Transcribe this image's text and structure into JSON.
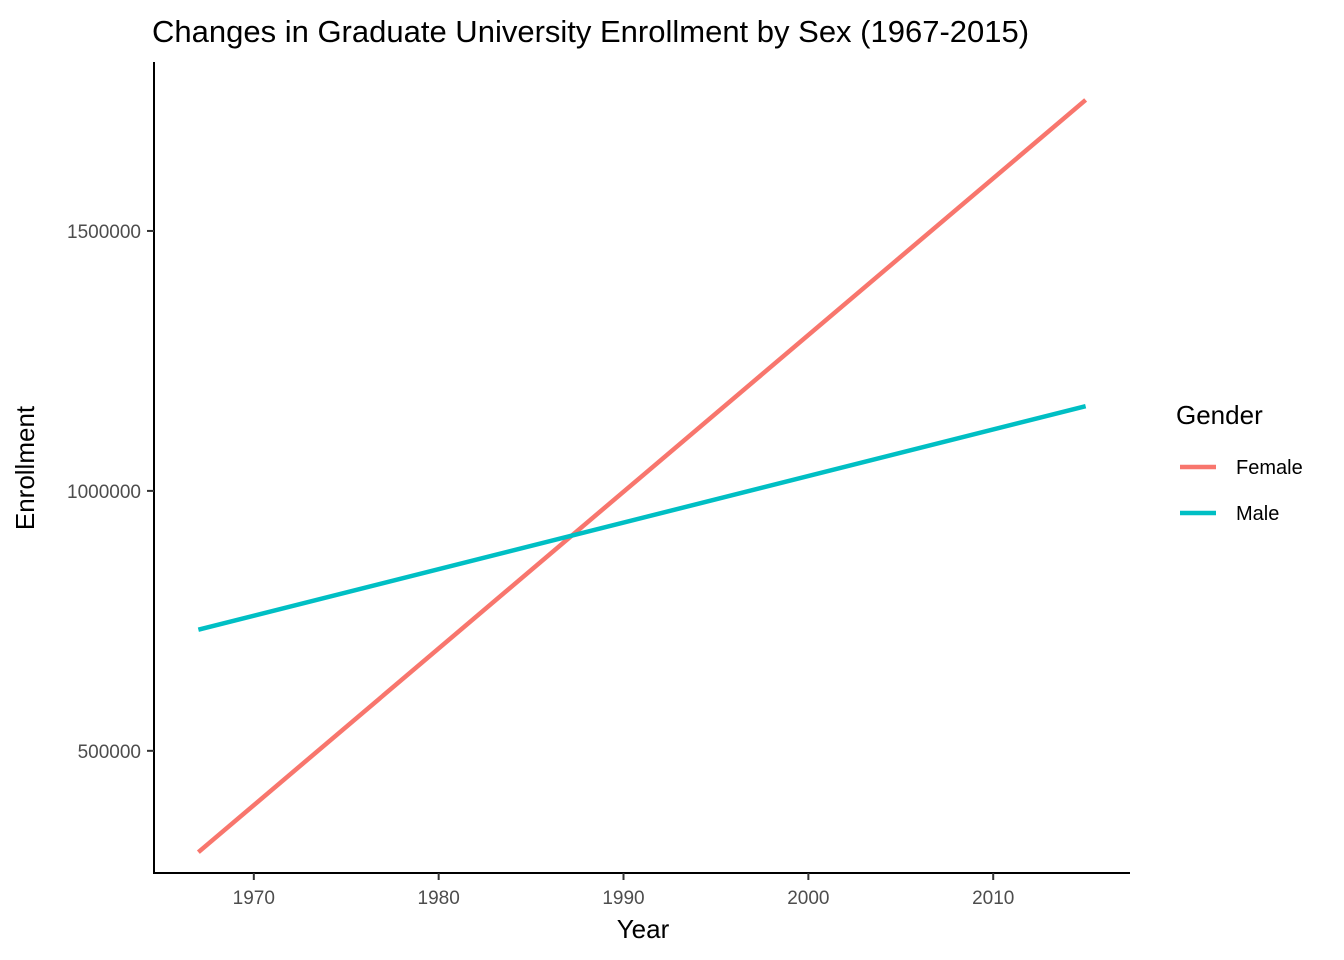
{
  "chart_data": {
    "type": "line",
    "title": "Changes in Graduate University Enrollment by Sex (1967-2015)",
    "xlabel": "Year",
    "ylabel": "Enrollment",
    "xlim": [
      1964.6,
      2017.4
    ],
    "ylim": [
      265000,
      1825000
    ],
    "x_ticks": [
      1970,
      1980,
      1990,
      2000,
      2010
    ],
    "x_tick_labels": [
      "1970",
      "1980",
      "1990",
      "2000",
      "2010"
    ],
    "y_ticks": [
      500000,
      1000000,
      1500000
    ],
    "y_tick_labels": [
      "500000",
      "1000000",
      "1500000"
    ],
    "grid": false,
    "legend": {
      "title": "Gender",
      "position": "right"
    },
    "series": [
      {
        "name": "Female",
        "color": "#F8766D",
        "x": [
          1967,
          2015
        ],
        "y": [
          305000,
          1752000
        ]
      },
      {
        "name": "Male",
        "color": "#00BFC4",
        "x": [
          1967,
          2015
        ],
        "y": [
          733000,
          1163000
        ]
      }
    ]
  }
}
